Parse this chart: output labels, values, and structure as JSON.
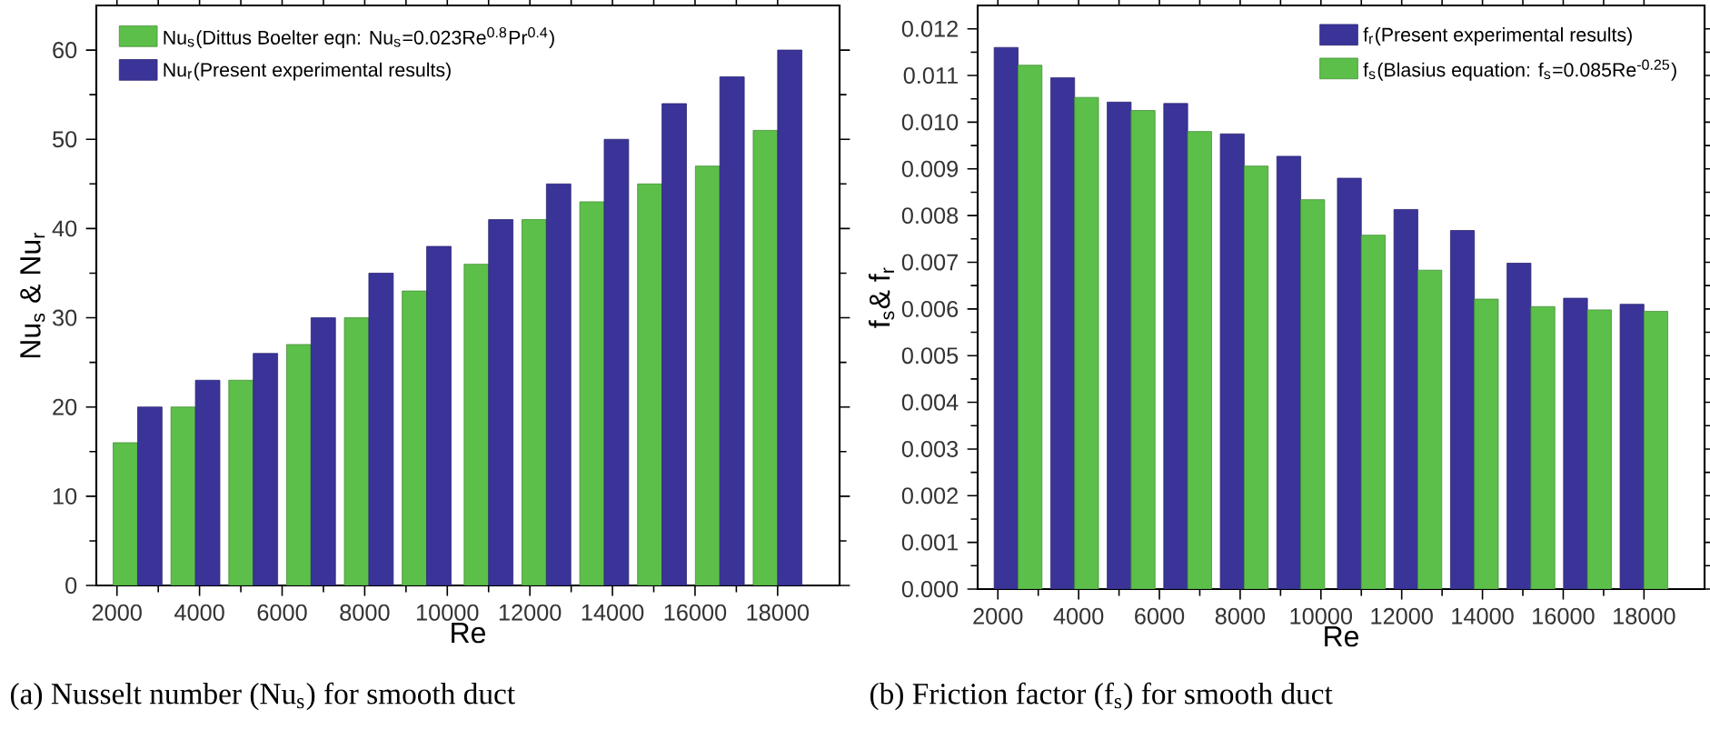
{
  "chart_data": [
    {
      "type": "bar",
      "xlabel": "Re",
      "ylabel": "Nu$_{s}$ & Nu$_{r}$",
      "x": [
        2500,
        3900,
        5300,
        6700,
        8100,
        9500,
        11000,
        12400,
        13800,
        15200,
        16600,
        18000
      ],
      "series": [
        {
          "name": "Nu$_{s}$(Dittus Boelter eqn: Nu$_{s}$=0.023Re$^{0.8}$Pr$^{0.4}$)",
          "color": "#5cbf4a",
          "values": [
            16,
            20,
            23,
            27,
            30,
            33,
            36,
            41,
            43,
            45,
            47,
            51
          ]
        },
        {
          "name": "Nu$_{r}$(Present experimental results)",
          "color": "#3a3499",
          "values": [
            20,
            23,
            26,
            30,
            35,
            38,
            41,
            45,
            50,
            54,
            57,
            60
          ]
        }
      ],
      "xlim": [
        1500,
        19500
      ],
      "ylim": [
        0,
        65
      ],
      "xticks": [
        2000,
        4000,
        6000,
        8000,
        10000,
        12000,
        14000,
        16000,
        18000
      ],
      "yticks": [
        0,
        10,
        20,
        30,
        40,
        50,
        60
      ],
      "legend": "top left",
      "annotations": [
        "(a) Nusselt number (Nu$_{s}$) for smooth duct"
      ]
    },
    {
      "type": "bar",
      "xlabel": "Re",
      "ylabel": "f$_{s}$& f$_{r}$",
      "x": [
        2500,
        3900,
        5300,
        6700,
        8100,
        9500,
        11000,
        12400,
        13800,
        15200,
        16600,
        18000
      ],
      "series": [
        {
          "name": "f$_{r}$(Present experimental results)",
          "color": "#3a3499",
          "values": [
            0.0116,
            0.01095,
            0.01043,
            0.0104,
            0.00975,
            0.00927,
            0.0088,
            0.00813,
            0.00768,
            0.00698,
            0.00623,
            0.0061
          ]
        },
        {
          "name": "f$_{s}$(Blasius equation: f$_{s}$=0.085Re$^{-0.25}$)",
          "color": "#5cbf4a",
          "values": [
            0.01122,
            0.01053,
            0.01025,
            0.0098,
            0.00906,
            0.00834,
            0.00758,
            0.00683,
            0.00621,
            0.00605,
            0.00598,
            0.00595
          ]
        }
      ],
      "xlim": [
        1500,
        19500
      ],
      "ylim": [
        0,
        0.0125
      ],
      "xticks": [
        2000,
        4000,
        6000,
        8000,
        10000,
        12000,
        14000,
        16000,
        18000
      ],
      "yticks": [
        {
          "value": 0,
          "label": "0.000"
        },
        {
          "value": 0.001,
          "label": "0.001"
        },
        {
          "value": 0.002,
          "label": "0.002"
        },
        {
          "value": 0.003,
          "label": "0.003"
        },
        {
          "value": 0.004,
          "label": "0.004"
        },
        {
          "value": 0.005,
          "label": "0.005"
        },
        {
          "value": 0.006,
          "label": "0.006"
        },
        {
          "value": 0.007,
          "label": "0.007"
        },
        {
          "value": 0.008,
          "label": "0.008"
        },
        {
          "value": 0.009,
          "label": "0.009"
        },
        {
          "value": 0.01,
          "label": "0.010"
        },
        {
          "value": 0.011,
          "label": "0.011"
        },
        {
          "value": 0.012,
          "label": "0.012"
        }
      ],
      "legend": "top right",
      "annotations": [
        "(b) Friction factor (f$_{s}$) for smooth duct"
      ]
    }
  ]
}
